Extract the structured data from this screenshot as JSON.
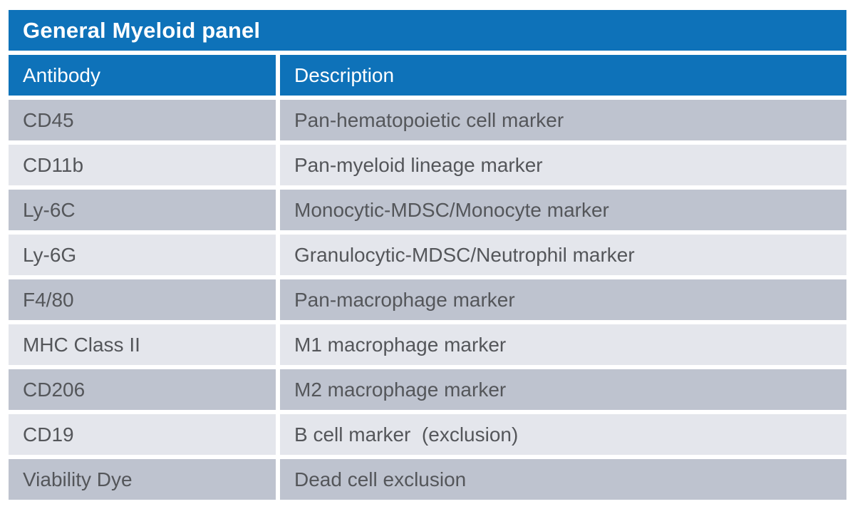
{
  "table": {
    "title": "General Myeloid panel",
    "columns": {
      "antibody": "Antibody",
      "description": "Description"
    },
    "rows": [
      {
        "antibody": "CD45",
        "description": "Pan-hematopoietic cell marker"
      },
      {
        "antibody": "CD11b",
        "description": "Pan-myeloid lineage marker"
      },
      {
        "antibody": "Ly-6C",
        "description": "Monocytic-MDSC/Monocyte marker"
      },
      {
        "antibody": "Ly-6G",
        "description": "Granulocytic-MDSC/Neutrophil marker"
      },
      {
        "antibody": "F4/80",
        "description": "Pan-macrophage marker"
      },
      {
        "antibody": "MHC Class II",
        "description": "M1 macrophage marker"
      },
      {
        "antibody": "CD206",
        "description": "M2 macrophage marker"
      },
      {
        "antibody": "CD19",
        "description": "B cell marker  (exclusion)"
      },
      {
        "antibody": "Viability Dye",
        "description": "Dead cell exclusion"
      }
    ],
    "colors": {
      "header_blue": "#0e72b9",
      "row_dark": "#bec3cf",
      "row_light": "#e4e6ec",
      "text_gray": "#54565a",
      "gutter_white": "#ffffff"
    }
  }
}
